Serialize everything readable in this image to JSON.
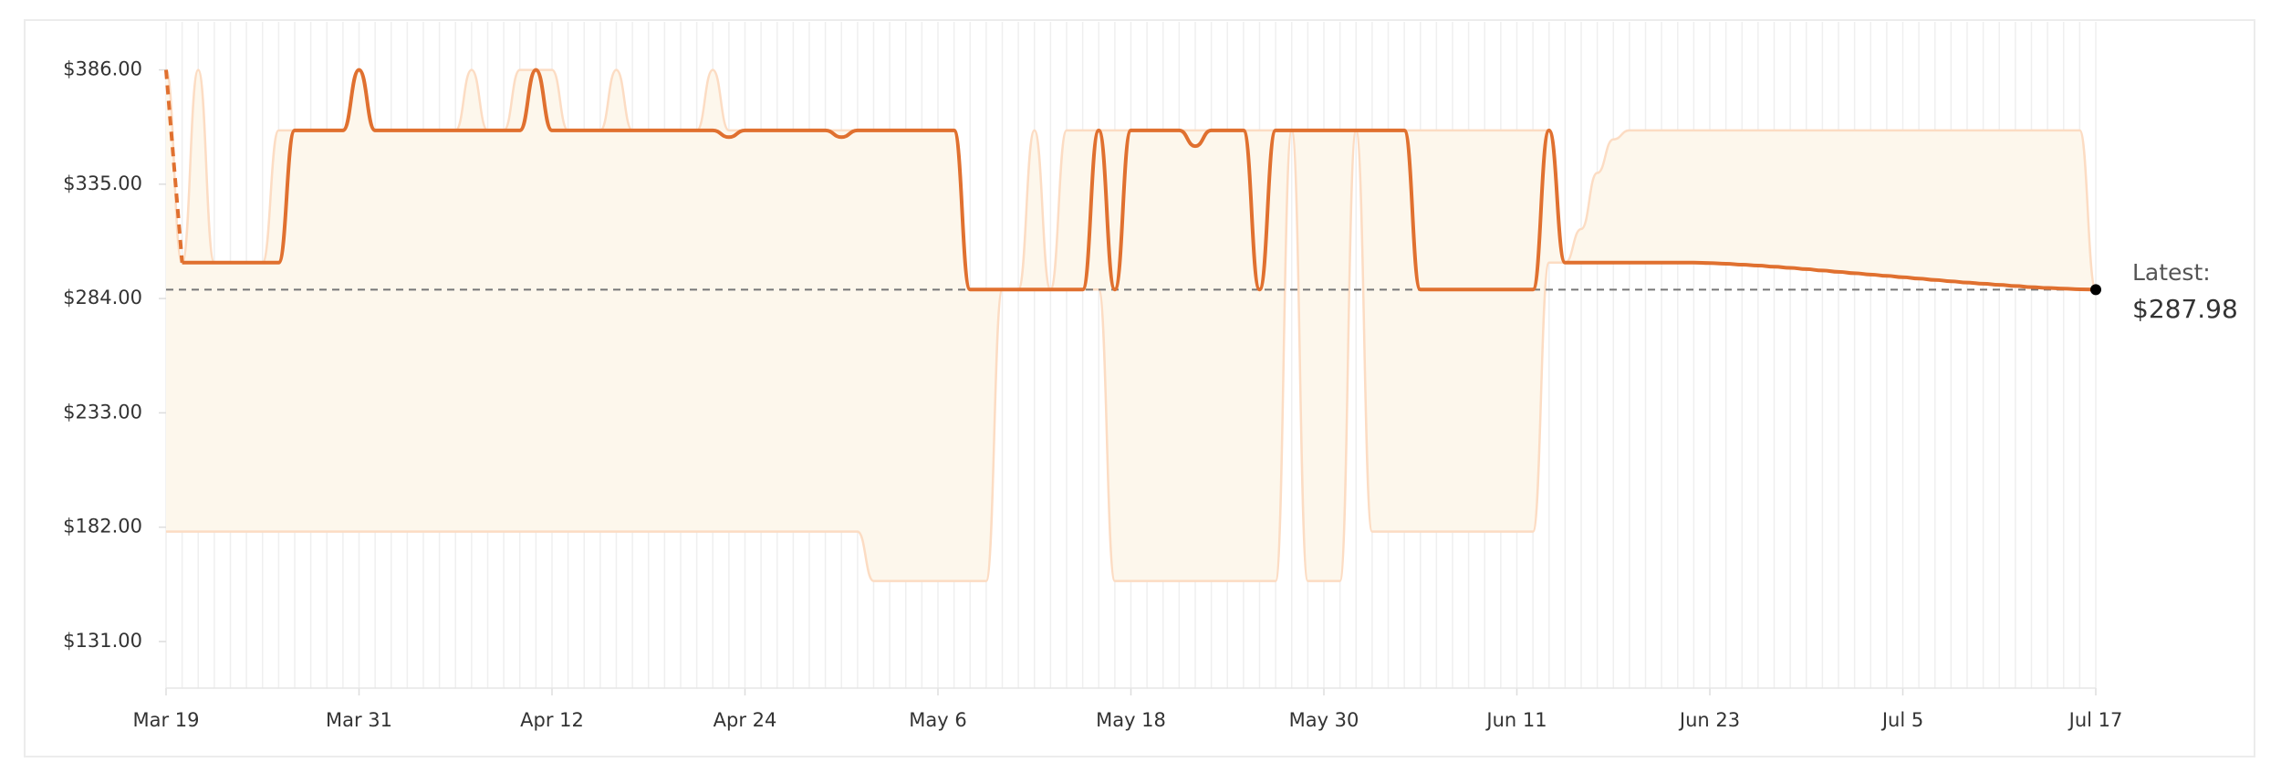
{
  "chart_data": {
    "type": "line",
    "categories": [
      "Mar 19",
      null,
      null,
      null,
      null,
      null,
      null,
      null,
      null,
      null,
      null,
      null,
      "Mar 31",
      null,
      null,
      null,
      null,
      null,
      null,
      null,
      null,
      null,
      null,
      null,
      "Apr 12",
      null,
      null,
      null,
      null,
      null,
      null,
      null,
      null,
      null,
      null,
      null,
      "Apr 24",
      null,
      null,
      null,
      null,
      null,
      null,
      null,
      null,
      null,
      null,
      null,
      "May 6",
      null,
      null,
      null,
      null,
      null,
      null,
      null,
      null,
      null,
      null,
      null,
      "May 18",
      null,
      null,
      null,
      null,
      null,
      null,
      null,
      null,
      null,
      null,
      null,
      "May 30",
      null,
      null,
      null,
      null,
      null,
      null,
      null,
      null,
      null,
      null,
      null,
      "Jun 11",
      null,
      null,
      null,
      null,
      null,
      null,
      null,
      null,
      null,
      null,
      null,
      "Jun 23",
      null,
      null,
      null,
      null,
      null,
      null,
      null,
      null,
      null,
      null,
      null,
      "Jul 5",
      null,
      null,
      null,
      null,
      null,
      null,
      null,
      null,
      null,
      null,
      null,
      "Jul 17"
    ],
    "series": [
      {
        "color": "#e0702f",
        "dash_first": true,
        "values": [
          386,
          300,
          300,
          300,
          300,
          300,
          300,
          300,
          359,
          359,
          359,
          359,
          386,
          359,
          359,
          359,
          359,
          359,
          359,
          359,
          359,
          359,
          359,
          386,
          359,
          359,
          359,
          359,
          359,
          359,
          359,
          359,
          359,
          359,
          359,
          356,
          359,
          359,
          359,
          359,
          359,
          359,
          356,
          359,
          359,
          359,
          359,
          359,
          359,
          359,
          288,
          288,
          288,
          288,
          288,
          288,
          288,
          288,
          359,
          288,
          359,
          359,
          359,
          359,
          352,
          359,
          359,
          359,
          288,
          359,
          359,
          359,
          359,
          359,
          359,
          359,
          359,
          359,
          288,
          288,
          288,
          288,
          288,
          288,
          288,
          288,
          359,
          300,
          300,
          300,
          300,
          300,
          300,
          300,
          300,
          300,
          299.8,
          299.5,
          299.1,
          298.7,
          298.2,
          297.7,
          297.1,
          296.5,
          295.9,
          295.3,
          294.7,
          294.1,
          293.5,
          292.9,
          292.3,
          291.7,
          291.1,
          290.6,
          290.1,
          289.6,
          289.1,
          288.7,
          288.4,
          288.1,
          287.98
        ]
      }
    ],
    "range": {
      "fill": "#fdf7ec",
      "stroke": "#fcdcc3",
      "upper": [
        386,
        300,
        386,
        300,
        300,
        300,
        300,
        359,
        359,
        359,
        359,
        359,
        386,
        359,
        359,
        359,
        359,
        359,
        359,
        386,
        359,
        359,
        386,
        386,
        386,
        359,
        359,
        359,
        386,
        359,
        359,
        359,
        359,
        359,
        386,
        359,
        359,
        359,
        359,
        359,
        359,
        359,
        359,
        359,
        359,
        359,
        359,
        359,
        359,
        359,
        288,
        288,
        288,
        288,
        359,
        288,
        359,
        359,
        359,
        359,
        359,
        359,
        359,
        359,
        359,
        359,
        359,
        359,
        359,
        359,
        359,
        359,
        359,
        359,
        359,
        359,
        359,
        359,
        359,
        359,
        359,
        359,
        359,
        359,
        359,
        359,
        359,
        300,
        315,
        340,
        355,
        359,
        359,
        359,
        359,
        359,
        359,
        359,
        359,
        359,
        359,
        359,
        359,
        359,
        359,
        359,
        359,
        359,
        359,
        359,
        359,
        359,
        359,
        359,
        359,
        359,
        359,
        359,
        359,
        359,
        288
      ],
      "lower": [
        180,
        180,
        180,
        180,
        180,
        180,
        180,
        180,
        180,
        180,
        180,
        180,
        180,
        180,
        180,
        180,
        180,
        180,
        180,
        180,
        180,
        180,
        180,
        180,
        180,
        180,
        180,
        180,
        180,
        180,
        180,
        180,
        180,
        180,
        180,
        180,
        180,
        180,
        180,
        180,
        180,
        180,
        180,
        180,
        158,
        158,
        158,
        158,
        158,
        158,
        158,
        158,
        288,
        288,
        288,
        288,
        288,
        288,
        288,
        158,
        158,
        158,
        158,
        158,
        158,
        158,
        158,
        158,
        158,
        158,
        359,
        158,
        158,
        158,
        359,
        180,
        180,
        180,
        180,
        180,
        180,
        180,
        180,
        180,
        180,
        180,
        300,
        300,
        300,
        300,
        300,
        300,
        300,
        300,
        300,
        300,
        299.8,
        299.5,
        299.1,
        298.7,
        298.2,
        297.7,
        297.1,
        296.5,
        295.9,
        295.3,
        294.7,
        294.1,
        293.5,
        292.9,
        292.3,
        291.7,
        291.1,
        290.6,
        290.1,
        289.6,
        289.1,
        288.7,
        288.4,
        288.1,
        287.98
      ]
    },
    "latest": {
      "label": "Latest:",
      "value": 287.98,
      "value_label": "$287.98"
    },
    "ylim": [
      110.2,
      407.4
    ],
    "yticks": [
      {
        "value": 131,
        "label": "$131.00"
      },
      {
        "value": 182,
        "label": "$182.00"
      },
      {
        "value": 233,
        "label": "$233.00"
      },
      {
        "value": 284,
        "label": "$284.00"
      },
      {
        "value": 335,
        "label": "$335.00"
      },
      {
        "value": 386,
        "label": "$386.00"
      }
    ],
    "grid": true
  }
}
